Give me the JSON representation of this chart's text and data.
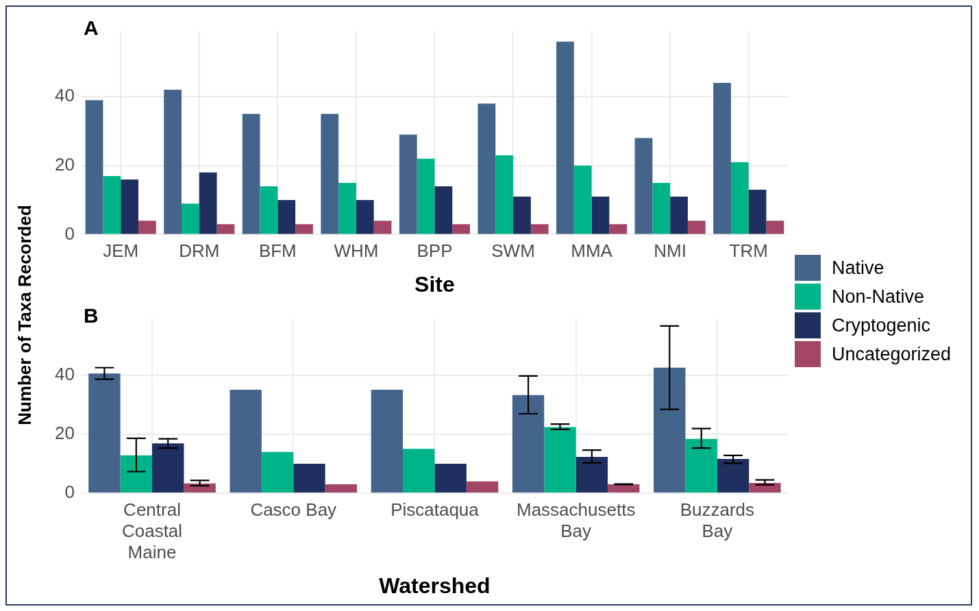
{
  "chart_data": [
    {
      "type": "bar",
      "title": "A",
      "xlabel": "Site",
      "ylabel": "Number of Taxa Recorded",
      "categories": [
        "JEM",
        "DRM",
        "BFM",
        "WHM",
        "BPP",
        "SWM",
        "MMA",
        "NMI",
        "TRM"
      ],
      "series": [
        {
          "name": "Native",
          "color": "#45648c",
          "values": [
            39,
            42,
            35,
            35,
            29,
            38,
            56,
            28,
            44
          ]
        },
        {
          "name": "Non-Native",
          "color": "#00b48a",
          "values": [
            17,
            9,
            14,
            15,
            22,
            23,
            20,
            15,
            21
          ]
        },
        {
          "name": "Cryptogenic",
          "color": "#1f2f5f",
          "values": [
            16,
            18,
            10,
            10,
            14,
            11,
            11,
            11,
            13
          ]
        },
        {
          "name": "Uncategorized",
          "color": "#a24566",
          "values": [
            4,
            3,
            3,
            4,
            3,
            3,
            3,
            4,
            4
          ]
        }
      ],
      "ylim": [
        0,
        59
      ],
      "yticks": [
        0,
        20,
        40
      ],
      "grid": true,
      "legend": "right"
    },
    {
      "type": "bar",
      "title": "B",
      "xlabel": "Watershed",
      "categories": [
        "Central Coastal Maine",
        "Casco Bay",
        "Piscataqua",
        "Massachusetts Bay",
        "Buzzards Bay"
      ],
      "series": [
        {
          "color": "#45648c",
          "values": [
            40.5,
            35,
            35,
            33.2,
            42.5
          ],
          "errors": [
            [
              38.6,
              42.5
            ],
            null,
            null,
            [
              26.9,
              39.7
            ],
            [
              28.4,
              56.6
            ]
          ]
        },
        {
          "color": "#00b48a",
          "values": [
            12.8,
            14,
            15,
            22.4,
            18.4
          ],
          "errors": [
            [
              7.3,
              18.6
            ],
            null,
            null,
            [
              21.6,
              23.4
            ],
            [
              15.3,
              21.9
            ]
          ]
        },
        {
          "color": "#1f2f5f",
          "values": [
            16.9,
            10,
            10,
            12.3,
            11.6
          ],
          "errors": [
            [
              15.3,
              18.4
            ],
            null,
            null,
            [
              10.3,
              14.6
            ],
            [
              10.1,
              12.8
            ]
          ]
        },
        {
          "color": "#a24566",
          "values": [
            3.3,
            3,
            4,
            3,
            3.5
          ],
          "errors": [
            [
              2.5,
              4.3
            ],
            null,
            null,
            [
              2.9,
              3.1
            ],
            [
              2.8,
              4.5
            ]
          ]
        }
      ],
      "ylim": [
        0,
        59
      ],
      "yticks": [
        0,
        20,
        40
      ],
      "grid": true
    }
  ]
}
